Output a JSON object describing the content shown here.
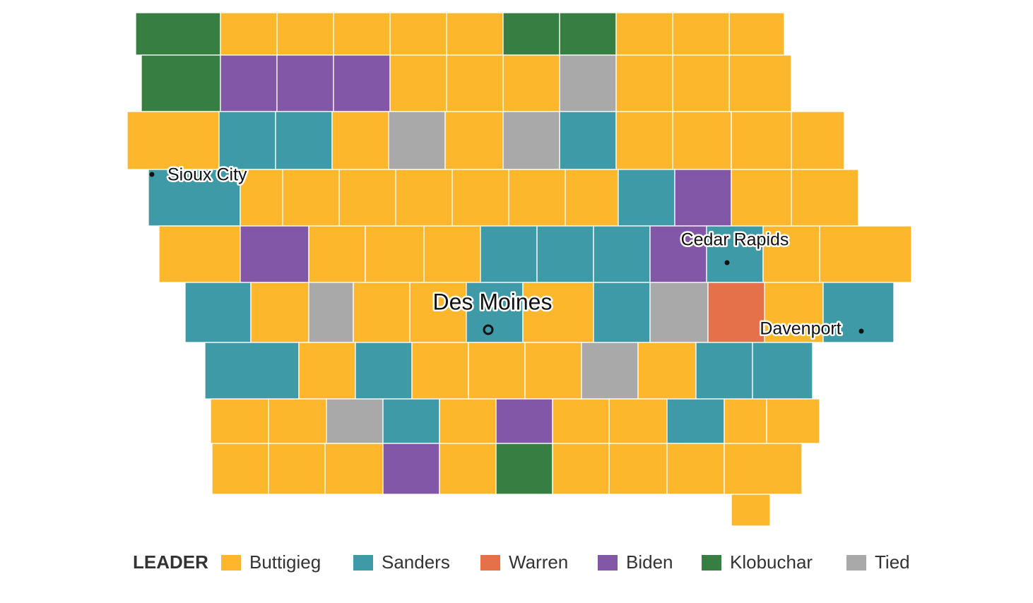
{
  "map": {
    "cities": [
      "Sioux City",
      "Des Moines",
      "Cedar Rapids",
      "Davenport"
    ]
  },
  "legend": {
    "title": "LEADER",
    "items": [
      {
        "name": "Buttigieg",
        "color": "#fdb72d"
      },
      {
        "name": "Sanders",
        "color": "#3f9aa8"
      },
      {
        "name": "Warren",
        "color": "#e4714a"
      },
      {
        "name": "Biden",
        "color": "#8357a8"
      },
      {
        "name": "Klobuchar",
        "color": "#377e42"
      },
      {
        "name": "Tied",
        "color": "#a9a9a9"
      }
    ]
  }
}
